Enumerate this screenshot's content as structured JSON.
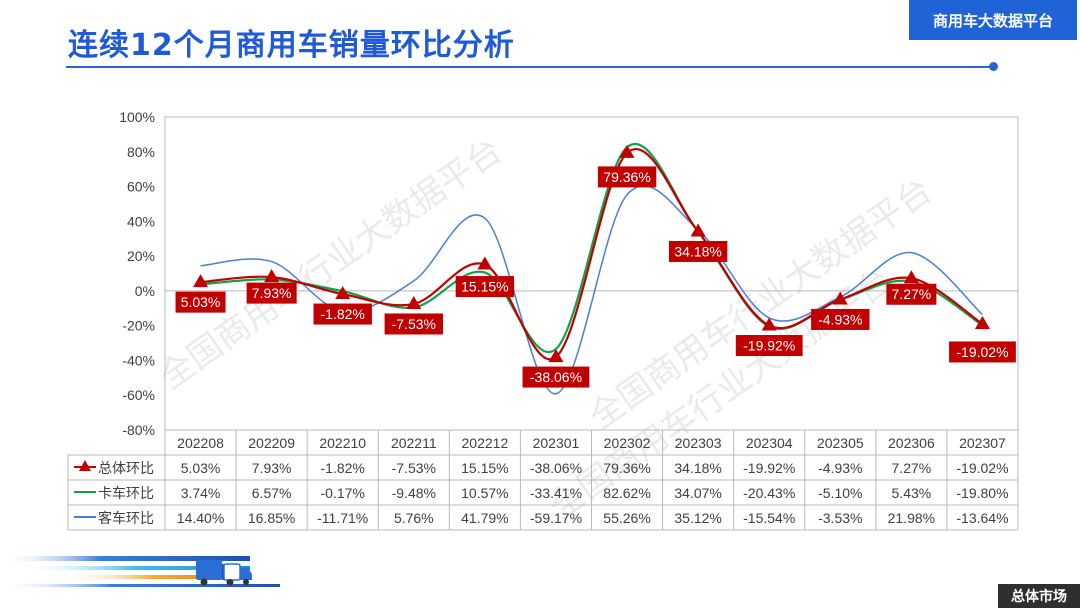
{
  "header": {
    "title": "连续12个月商用车销量环比分析",
    "brand": "商用车大数据平台",
    "footer_tag": "总体市场",
    "watermark": "全国商用车行业大数据平台"
  },
  "colors": {
    "total": "#c00000",
    "truck": "#12a04a",
    "bus": "#4a7fd4",
    "label_bg": "#c00000",
    "title": "#1f5bd6",
    "brand_bg": "#1f63d6"
  },
  "chart_data": {
    "type": "line",
    "categories": [
      "202208",
      "202209",
      "202210",
      "202211",
      "202212",
      "202301",
      "202302",
      "202303",
      "202304",
      "202305",
      "202306",
      "202307"
    ],
    "y_ticks": [
      "100%",
      "80%",
      "60%",
      "40%",
      "20%",
      "0%",
      "-20%",
      "-40%",
      "-60%",
      "-80%"
    ],
    "ylim": [
      -80,
      100
    ],
    "grid": false,
    "legend": "table-left",
    "series": [
      {
        "name": "总体环比",
        "values": [
          5.03,
          7.93,
          -1.82,
          -7.53,
          15.15,
          -38.06,
          79.36,
          34.18,
          -19.92,
          -4.93,
          7.27,
          -19.02
        ],
        "labels": [
          "5.03%",
          "7.93%",
          "-1.82%",
          "-7.53%",
          "15.15%",
          "-38.06%",
          "79.36%",
          "34.18%",
          "-19.92%",
          "-4.93%",
          "7.27%",
          "-19.02%"
        ],
        "marker": "triangle",
        "color_key": "total"
      },
      {
        "name": "卡车环比",
        "values": [
          3.74,
          6.57,
          -0.17,
          -9.48,
          10.57,
          -33.41,
          82.62,
          34.07,
          -20.43,
          -5.1,
          5.43,
          -19.8
        ],
        "labels": [
          "3.74%",
          "6.57%",
          "-0.17%",
          "-9.48%",
          "10.57%",
          "-33.41%",
          "82.62%",
          "34.07%",
          "-20.43%",
          "-5.10%",
          "5.43%",
          "-19.80%"
        ],
        "marker": "none",
        "color_key": "truck"
      },
      {
        "name": "客车环比",
        "values": [
          14.4,
          16.85,
          -11.71,
          5.76,
          41.79,
          -59.17,
          55.26,
          35.12,
          -15.54,
          -3.53,
          21.98,
          -13.64
        ],
        "labels": [
          "14.40%",
          "16.85%",
          "-11.71%",
          "5.76%",
          "41.79%",
          "-59.17%",
          "55.26%",
          "35.12%",
          "-15.54%",
          "-3.53%",
          "21.98%",
          "-13.64%"
        ],
        "marker": "none",
        "color_key": "bus"
      }
    ]
  }
}
